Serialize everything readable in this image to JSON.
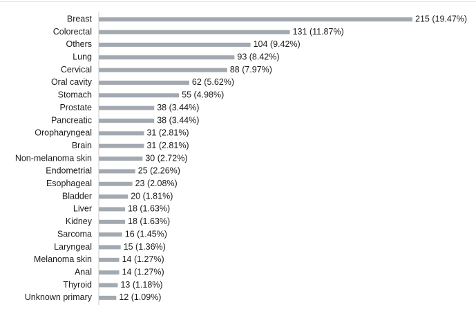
{
  "chart_data": {
    "type": "bar",
    "orientation": "horizontal",
    "categories": [
      "Breast",
      "Colorectal",
      "Others",
      "Lung",
      "Cervical",
      "Oral cavity",
      "Stomach",
      "Prostate",
      "Pancreatic",
      "Oropharyngeal",
      "Brain",
      "Non-melanoma skin",
      "Endometrial",
      "Esophageal",
      "Bladder",
      "Liver",
      "Kidney",
      "Sarcoma",
      "Laryngeal",
      "Melanoma skin",
      "Anal",
      "Thyroid",
      "Unknown primary"
    ],
    "values": [
      215,
      131,
      104,
      93,
      88,
      62,
      55,
      38,
      38,
      31,
      31,
      30,
      25,
      23,
      20,
      18,
      18,
      16,
      15,
      14,
      14,
      13,
      12
    ],
    "data_labels": [
      "215 (19.47%)",
      "131 (11.87%)",
      "104 (9.42%)",
      "93 (8.42%)",
      "88 (7.97%)",
      "62 (5.62%)",
      "55 (4.98%)",
      "38 (3.44%)",
      "38 (3.44%)",
      "31 (2.81%)",
      "31 (2.81%)",
      "30 (2.72%)",
      "25 (2.26%)",
      "23 (2.08%)",
      "20 (1.81%)",
      "18 (1.63%)",
      "18 (1.63%)",
      "16 (1.45%)",
      "15 (1.36%)",
      "14 (1.27%)",
      "14 (1.27%)",
      "13 (1.18%)",
      "12 (1.09%)"
    ],
    "xlim": [
      0,
      215
    ],
    "bar_color": "#a3a9b0",
    "axis_color": "#c8c8c8",
    "grid": false,
    "legend": "none"
  }
}
